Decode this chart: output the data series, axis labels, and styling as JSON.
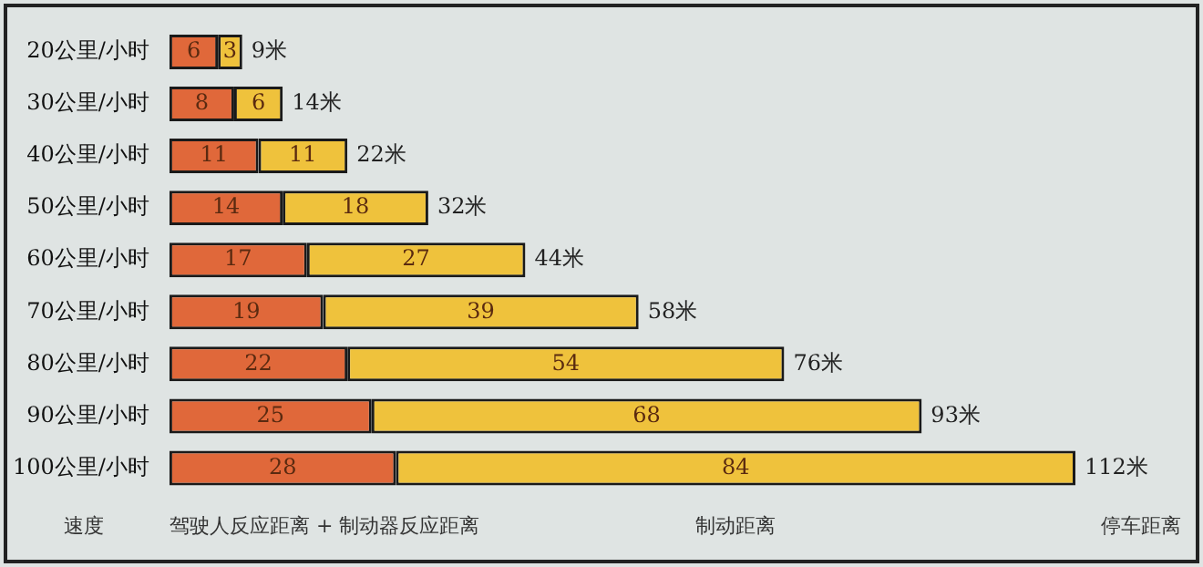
{
  "chart_data": {
    "type": "bar",
    "orientation": "horizontal",
    "stacked": true,
    "ylabel": "速度",
    "categories": [
      "20公里/小时",
      "30公里/小时",
      "40公里/小时",
      "50公里/小时",
      "60公里/小时",
      "70公里/小时",
      "80公里/小时",
      "90公里/小时",
      "100公里/小时"
    ],
    "series": [
      {
        "name": "驾驶人反应距离 + 制动器反应距离",
        "color": "#e0683a",
        "values": [
          6,
          8,
          11,
          14,
          17,
          19,
          22,
          25,
          28
        ]
      },
      {
        "name": "制动距离",
        "color": "#efc23c",
        "values": [
          3,
          6,
          11,
          18,
          27,
          39,
          54,
          68,
          84
        ]
      }
    ],
    "totals": [
      "9米",
      "14米",
      "22米",
      "32米",
      "44米",
      "58米",
      "76米",
      "93米",
      "112米"
    ],
    "annotations": [
      "停车距离"
    ],
    "data_labels": true,
    "legend": "bottom"
  }
}
